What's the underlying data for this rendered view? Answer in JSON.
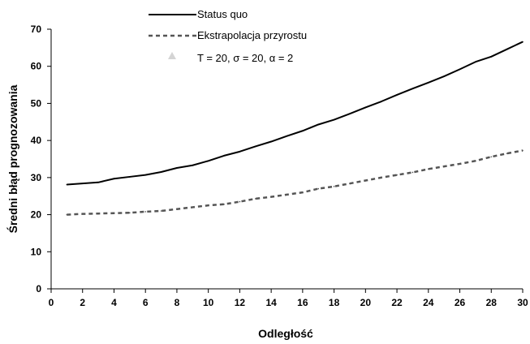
{
  "chart_data": {
    "type": "line",
    "xlabel": "Odległość",
    "ylabel": "Średni błąd prognozowania",
    "xlim": [
      0,
      30
    ],
    "ylim": [
      0,
      70
    ],
    "xticks": [
      0,
      2,
      4,
      6,
      8,
      10,
      12,
      14,
      16,
      18,
      20,
      22,
      24,
      26,
      28,
      30
    ],
    "yticks": [
      0,
      10,
      20,
      30,
      40,
      50,
      60,
      70
    ],
    "grid": false,
    "legend_position": "top-left",
    "legend_note": "T = 20, σ = 20, α = 2",
    "x": [
      1,
      2,
      3,
      4,
      5,
      6,
      7,
      8,
      9,
      10,
      11,
      12,
      13,
      14,
      15,
      16,
      17,
      18,
      19,
      20,
      21,
      22,
      23,
      24,
      25,
      26,
      27,
      28,
      29,
      30
    ],
    "series": [
      {
        "name": "Status quo",
        "style": "solid",
        "color": "#000000",
        "values": [
          28.1,
          28.4,
          28.7,
          29.7,
          30.2,
          30.7,
          31.5,
          32.6,
          33.3,
          34.5,
          35.9,
          37.0,
          38.4,
          39.7,
          41.2,
          42.6,
          44.3,
          45.6,
          47.2,
          48.9,
          50.5,
          52.3,
          54.0,
          55.6,
          57.3,
          59.2,
          61.2,
          62.6,
          64.6,
          66.6
        ]
      },
      {
        "name": "Ekstrapolacja przyrostu",
        "style": "dashed",
        "color": "#555555",
        "values": [
          20.0,
          20.2,
          20.3,
          20.4,
          20.5,
          20.8,
          21.0,
          21.5,
          22.0,
          22.5,
          22.8,
          23.5,
          24.3,
          24.8,
          25.4,
          26.0,
          27.0,
          27.6,
          28.4,
          29.2,
          30.0,
          30.7,
          31.4,
          32.3,
          33.0,
          33.7,
          34.5,
          35.6,
          36.5,
          37.3
        ]
      }
    ]
  }
}
